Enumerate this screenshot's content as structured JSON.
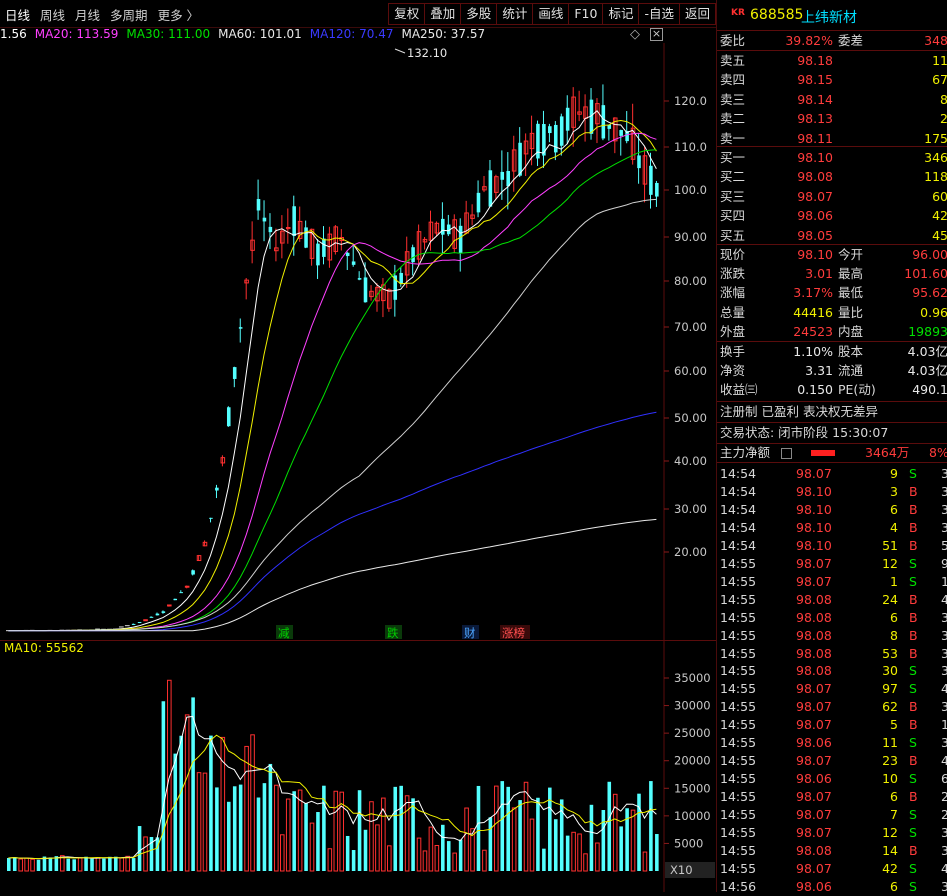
{
  "toolbar": {
    "periods": [
      "日线",
      "周线",
      "月线",
      "多周期",
      "更多 〉"
    ],
    "buttons": [
      "复权",
      "叠加",
      "多股",
      "统计",
      "画线",
      "F10",
      "标记",
      "-自选",
      "返回"
    ]
  },
  "ma_legend": [
    {
      "text": "1.56",
      "color": "#ffffff"
    },
    {
      "text": "MA20: 113.59",
      "color": "#ff40ff"
    },
    {
      "text": "MA30: 111.00",
      "color": "#00e000"
    },
    {
      "text": "MA60: 101.01",
      "color": "#e8e8e8"
    },
    {
      "text": "MA120: 70.47",
      "color": "#3a3aff"
    },
    {
      "text": "MA250: 37.57",
      "color": "#e8e8e8"
    }
  ],
  "chart_controls": {
    "diamond": "◇",
    "close": "×"
  },
  "price_axis": {
    "labels": [
      "120.0",
      "110.0",
      "100.0",
      "90.00",
      "80.00",
      "70.00",
      "60.00",
      "50.00",
      "40.00",
      "30.00",
      "20.00"
    ],
    "values": [
      120,
      110,
      100,
      90,
      80,
      70,
      60,
      50,
      40,
      30,
      20
    ]
  },
  "high_marker": "132.10",
  "event_tags": [
    {
      "text": "减",
      "color": "#00d000",
      "bg": "#0a3a0a"
    },
    {
      "text": "跌",
      "color": "#00d000",
      "bg": "#0a3a0a"
    },
    {
      "text": "财",
      "color": "#4da6ff",
      "bg": "#0a1a3a"
    },
    {
      "text": "涨榜",
      "color": "#ff5050",
      "bg": "#3a0a0a"
    }
  ],
  "volume_legend": "MA10: 55562",
  "volume_axis": {
    "labels": [
      "35000",
      "30000",
      "25000",
      "20000",
      "15000",
      "10000",
      "5000"
    ],
    "values": [
      35000,
      30000,
      25000,
      20000,
      15000,
      10000,
      5000
    ],
    "unit": "X10"
  },
  "stock": {
    "market": "KR",
    "code": "688585",
    "name": "上纬新材"
  },
  "order_ratio": {
    "label1": "委比",
    "value1": "39.82%",
    "label2": "委差",
    "value2": "348"
  },
  "asks": [
    {
      "label": "卖五",
      "price": "98.18",
      "vol": "11"
    },
    {
      "label": "卖四",
      "price": "98.15",
      "vol": "67"
    },
    {
      "label": "卖三",
      "price": "98.14",
      "vol": "8"
    },
    {
      "label": "卖二",
      "price": "98.13",
      "vol": "2"
    },
    {
      "label": "卖一",
      "price": "98.11",
      "vol": "175"
    }
  ],
  "bids": [
    {
      "label": "买一",
      "price": "98.10",
      "vol": "346"
    },
    {
      "label": "买二",
      "price": "98.08",
      "vol": "118"
    },
    {
      "label": "买三",
      "price": "98.07",
      "vol": "60"
    },
    {
      "label": "买四",
      "price": "98.06",
      "vol": "42"
    },
    {
      "label": "买五",
      "price": "98.05",
      "vol": "45"
    }
  ],
  "quote": [
    {
      "l1": "现价",
      "v1": "98.10",
      "c1": "red",
      "l2": "今开",
      "v2": "96.00",
      "c2": "red"
    },
    {
      "l1": "涨跌",
      "v1": "3.01",
      "c1": "red",
      "l2": "最高",
      "v2": "101.60",
      "c2": "red"
    },
    {
      "l1": "涨幅",
      "v1": "3.17%",
      "c1": "red",
      "l2": "最低",
      "v2": "95.62",
      "c2": "red"
    },
    {
      "l1": "总量",
      "v1": "44416",
      "c1": "yellow",
      "l2": "量比",
      "v2": "0.96",
      "c2": "yellow"
    },
    {
      "l1": "外盘",
      "v1": "24523",
      "c1": "red",
      "l2": "内盘",
      "v2": "19893",
      "c2": "green"
    }
  ],
  "fundamentals": [
    {
      "l1": "换手",
      "v1": "1.10%",
      "l2": "股本",
      "v2": "4.03亿"
    },
    {
      "l1": "净资",
      "v1": "3.31",
      "l2": "流通",
      "v2": "4.03亿"
    },
    {
      "l1": "收益㈢",
      "v1": "0.150",
      "l2": "PE(动)",
      "v2": "490.1"
    }
  ],
  "tags_line": "注册制 已盈利 表决权无差异",
  "trade_status": "交易状态: 闭市阶段 15:30:07",
  "main_flow": {
    "label": "主力净额",
    "value": "3464万",
    "pct": "8%"
  },
  "ticks": [
    {
      "t": "14:54",
      "p": "98.07",
      "pc": "red",
      "v": "9",
      "d": "S",
      "n": "3"
    },
    {
      "t": "14:54",
      "p": "98.10",
      "pc": "red",
      "v": "3",
      "d": "B",
      "n": "3"
    },
    {
      "t": "14:54",
      "p": "98.10",
      "pc": "red",
      "v": "6",
      "d": "B",
      "n": "3"
    },
    {
      "t": "14:54",
      "p": "98.10",
      "pc": "red",
      "v": "4",
      "d": "B",
      "n": "3"
    },
    {
      "t": "14:54",
      "p": "98.10",
      "pc": "red",
      "v": "51",
      "d": "B",
      "n": "5"
    },
    {
      "t": "14:55",
      "p": "98.07",
      "pc": "red",
      "v": "12",
      "d": "S",
      "n": "9"
    },
    {
      "t": "14:55",
      "p": "98.07",
      "pc": "red",
      "v": "1",
      "d": "S",
      "n": "1"
    },
    {
      "t": "14:55",
      "p": "98.08",
      "pc": "red",
      "v": "24",
      "d": "B",
      "n": "4"
    },
    {
      "t": "14:55",
      "p": "98.08",
      "pc": "red",
      "v": "6",
      "d": "B",
      "n": "3"
    },
    {
      "t": "14:55",
      "p": "98.08",
      "pc": "red",
      "v": "8",
      "d": "B",
      "n": "3"
    },
    {
      "t": "14:55",
      "p": "98.08",
      "pc": "red",
      "v": "53",
      "d": "B",
      "n": "3"
    },
    {
      "t": "14:55",
      "p": "98.08",
      "pc": "red",
      "v": "30",
      "d": "S",
      "n": "3"
    },
    {
      "t": "14:55",
      "p": "98.07",
      "pc": "red",
      "v": "97",
      "d": "S",
      "n": "4"
    },
    {
      "t": "14:55",
      "p": "98.07",
      "pc": "red",
      "v": "62",
      "d": "B",
      "n": "3"
    },
    {
      "t": "14:55",
      "p": "98.07",
      "pc": "red",
      "v": "5",
      "d": "B",
      "n": "1"
    },
    {
      "t": "14:55",
      "p": "98.06",
      "pc": "red",
      "v": "11",
      "d": "S",
      "n": "3"
    },
    {
      "t": "14:55",
      "p": "98.07",
      "pc": "red",
      "v": "23",
      "d": "B",
      "n": "4"
    },
    {
      "t": "14:55",
      "p": "98.06",
      "pc": "red",
      "v": "10",
      "d": "S",
      "n": "6"
    },
    {
      "t": "14:55",
      "p": "98.07",
      "pc": "red",
      "v": "6",
      "d": "B",
      "n": "2"
    },
    {
      "t": "14:55",
      "p": "98.07",
      "pc": "red",
      "v": "7",
      "d": "S",
      "n": "2"
    },
    {
      "t": "14:55",
      "p": "98.07",
      "pc": "red",
      "v": "12",
      "d": "S",
      "n": "3"
    },
    {
      "t": "14:55",
      "p": "98.08",
      "pc": "red",
      "v": "14",
      "d": "B",
      "n": "3"
    },
    {
      "t": "14:55",
      "p": "98.07",
      "pc": "red",
      "v": "42",
      "d": "S",
      "n": "4"
    },
    {
      "t": "14:56",
      "p": "98.06",
      "pc": "red",
      "v": "6",
      "d": "S",
      "n": "3"
    }
  ]
}
